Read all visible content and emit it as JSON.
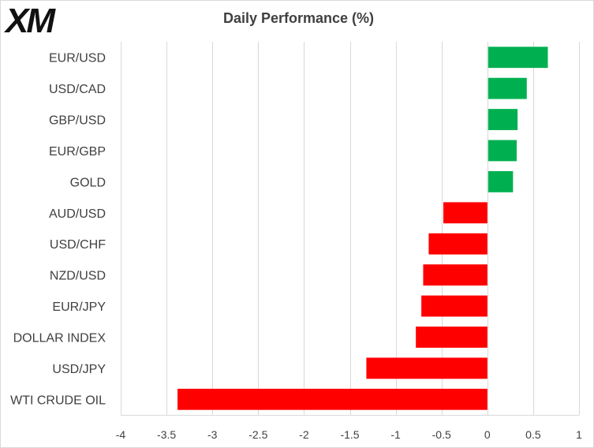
{
  "brand": {
    "logo_text": "XM"
  },
  "chart_data": {
    "type": "bar",
    "orientation": "horizontal",
    "title": "Daily Performance (%)",
    "categories": [
      "EUR/USD",
      "USD/CAD",
      "GBP/USD",
      "EUR/GBP",
      "GOLD",
      "AUD/USD",
      "USD/CHF",
      "NZD/USD",
      "EUR/JPY",
      "DOLLAR INDEX",
      "USD/JPY",
      "WTI CRUDE OIL"
    ],
    "values": [
      0.66,
      0.43,
      0.33,
      0.32,
      0.28,
      -0.48,
      -0.64,
      -0.7,
      -0.72,
      -0.78,
      -1.32,
      -3.38
    ],
    "xlim": [
      -4,
      1
    ],
    "xticks": [
      -4,
      -3.5,
      -3,
      -2.5,
      -2,
      -1.5,
      -1,
      -0.5,
      0,
      0.5,
      1
    ],
    "xlabel": "",
    "ylabel": "",
    "grid": true,
    "colors": {
      "positive": "#00b050",
      "negative": "#ff0000"
    }
  }
}
